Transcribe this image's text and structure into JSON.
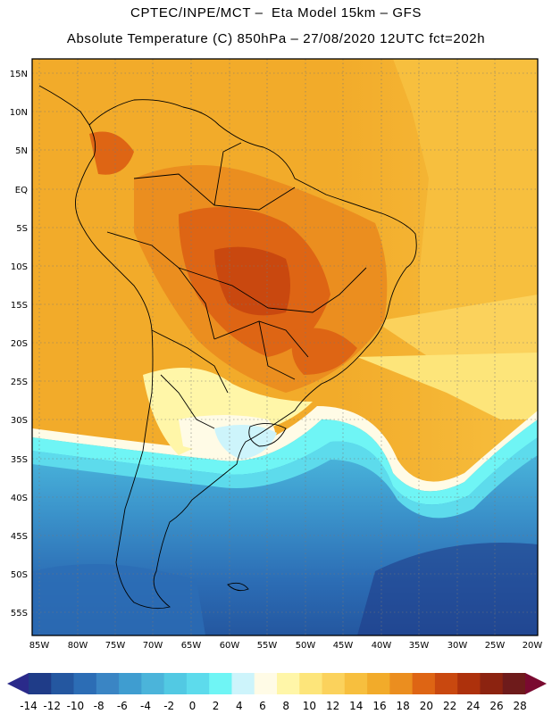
{
  "header": {
    "title_line1": "CPTEC/INPE/MCT –  Eta Model 15km – GFS",
    "title_line2": "Absolute Temperature (C) 850hPa – 27/08/2020 12UTC fct=202h"
  },
  "map": {
    "lat_labels": [
      "15N",
      "10N",
      "5N",
      "EQ",
      "5S",
      "10S",
      "15S",
      "20S",
      "25S",
      "30S",
      "35S",
      "40S",
      "45S",
      "50S",
      "55S"
    ],
    "lon_labels": [
      "85W",
      "80W",
      "75W",
      "70W",
      "65W",
      "60W",
      "55W",
      "50W",
      "45W",
      "40W",
      "35W",
      "30W",
      "25W",
      "20W"
    ],
    "gridlines": "dotted"
  },
  "colorbar": {
    "ticks": [
      "-14",
      "-12",
      "-10",
      "-8",
      "-6",
      "-4",
      "-2",
      "0",
      "2",
      "4",
      "6",
      "8",
      "10",
      "12",
      "14",
      "16",
      "18",
      "20",
      "22",
      "24",
      "26",
      "28"
    ],
    "colors": [
      "#1f3c88",
      "#2457a0",
      "#2c6db5",
      "#3a85c4",
      "#3f9dd0",
      "#4bb4da",
      "#52c9e3",
      "#5ddbec",
      "#6ff5f5",
      "#cdf4fb",
      "#fffbe6",
      "#fff6a8",
      "#fde57a",
      "#fbd25c",
      "#f7bf3e",
      "#f2ab2a",
      "#eb8e1f",
      "#de6514",
      "#c9480f",
      "#ad310c",
      "#8c2310",
      "#6e1b1b"
    ],
    "low_extend_color": "#2a2a8a",
    "high_extend_color": "#7a0a30"
  }
}
